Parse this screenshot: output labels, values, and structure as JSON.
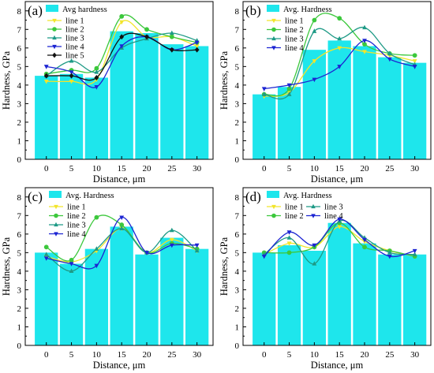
{
  "colors": {
    "bar": "#1ee6ec",
    "line_1": "#f2e52a",
    "line_2": "#3cc83c",
    "line_3": "#1e9a86",
    "line_4": "#1c24d2",
    "line_5": "#111111"
  },
  "chart_data": [
    {
      "type": "bar",
      "panel_label": "(a)",
      "xlabel": "Distance, μm",
      "ylabel": "Hardness, GPa",
      "x": [
        0,
        5,
        10,
        15,
        20,
        25,
        30
      ],
      "x_ticks": [
        "0",
        "5",
        "10",
        "15",
        "20",
        "25",
        "30"
      ],
      "y_ticks": [
        "0",
        "1",
        "2",
        "3",
        "4",
        "5",
        "6",
        "7",
        "8"
      ],
      "ylim": [
        0,
        8.5
      ],
      "legend_position": "top-left",
      "bar_series": {
        "name": "Avg hardness",
        "values": [
          4.5,
          4.6,
          4.4,
          6.9,
          6.8,
          6.2,
          6.1
        ]
      },
      "series": [
        {
          "name": "line 1",
          "color_key": "line_1",
          "marker": "triangle-down",
          "values": [
            4.2,
            4.2,
            4.3,
            7.4,
            6.6,
            6.6,
            6.1
          ]
        },
        {
          "name": "line 2",
          "color_key": "line_2",
          "marker": "circle",
          "values": [
            4.6,
            4.8,
            4.9,
            7.7,
            7.0,
            6.6,
            6.3
          ]
        },
        {
          "name": "line 3",
          "color_key": "line_3",
          "marker": "triangle-up",
          "values": [
            4.5,
            5.3,
            4.7,
            6.0,
            6.5,
            6.8,
            6.4
          ]
        },
        {
          "name": "line 4",
          "color_key": "line_4",
          "marker": "triangle-down",
          "values": [
            5.0,
            4.7,
            3.9,
            6.1,
            6.6,
            5.9,
            6.3
          ]
        },
        {
          "name": "line 5",
          "color_key": "line_5",
          "marker": "diamond",
          "values": [
            4.5,
            4.5,
            4.4,
            6.6,
            6.6,
            5.9,
            5.9
          ]
        }
      ]
    },
    {
      "type": "bar",
      "panel_label": "(b)",
      "xlabel": "Distance, μm",
      "ylabel": "Hardness, GPa",
      "x": [
        0,
        5,
        10,
        15,
        20,
        25,
        30
      ],
      "x_ticks": [
        "0",
        "5",
        "10",
        "15",
        "20",
        "25",
        "30"
      ],
      "y_ticks": [
        "0",
        "1",
        "2",
        "3",
        "4",
        "5",
        "6",
        "7",
        "8"
      ],
      "ylim": [
        0,
        8.5
      ],
      "legend_position": "top-left",
      "bar_series": {
        "name": "Avg. Hardness",
        "values": [
          3.5,
          3.9,
          5.9,
          6.4,
          6.1,
          5.5,
          5.2
        ]
      },
      "series": [
        {
          "name": "line 1",
          "color_key": "line_1",
          "marker": "triangle-down",
          "values": [
            3.4,
            3.6,
            5.3,
            6.0,
            5.8,
            5.6,
            5.3
          ]
        },
        {
          "name": "line 2",
          "color_key": "line_2",
          "marker": "circle",
          "values": [
            3.5,
            3.8,
            7.5,
            7.6,
            6.2,
            5.7,
            5.6
          ]
        },
        {
          "name": "line 3",
          "color_key": "line_3",
          "marker": "triangle-up",
          "values": [
            3.5,
            3.5,
            6.9,
            6.5,
            7.1,
            5.7,
            5.1
          ]
        },
        {
          "name": "line 4",
          "color_key": "line_4",
          "marker": "triangle-down",
          "values": [
            3.8,
            4.0,
            4.3,
            5.0,
            6.4,
            5.4,
            5.0
          ]
        }
      ]
    },
    {
      "type": "bar",
      "panel_label": "(c)",
      "xlabel": "Distance, μm",
      "ylabel": "Hardness, GPa",
      "x": [
        0,
        5,
        10,
        15,
        20,
        25,
        30
      ],
      "x_ticks": [
        "0",
        "5",
        "10",
        "15",
        "20",
        "25",
        "30"
      ],
      "y_ticks": [
        "0",
        "1",
        "2",
        "3",
        "4",
        "5",
        "6",
        "7",
        "8"
      ],
      "ylim": [
        0,
        8.5
      ],
      "legend_position": "top-left",
      "bar_series": {
        "name": "Avg. Hardness",
        "values": [
          5.0,
          4.4,
          5.2,
          6.4,
          4.9,
          5.8,
          5.2
        ]
      },
      "series": [
        {
          "name": "line 1",
          "color_key": "line_1",
          "marker": "triangle-down",
          "values": [
            4.8,
            4.5,
            5.1,
            6.3,
            5.0,
            5.7,
            5.1
          ]
        },
        {
          "name": "line 2",
          "color_key": "line_2",
          "marker": "circle",
          "values": [
            5.3,
            4.6,
            6.9,
            6.5,
            5.0,
            5.5,
            5.2
          ]
        },
        {
          "name": "line 3",
          "color_key": "line_3",
          "marker": "triangle-up",
          "values": [
            4.9,
            4.0,
            5.2,
            6.3,
            5.0,
            6.2,
            5.1
          ]
        },
        {
          "name": "line 4",
          "color_key": "line_4",
          "marker": "triangle-down",
          "values": [
            4.7,
            4.4,
            4.3,
            6.9,
            5.0,
            5.4,
            5.4
          ]
        }
      ]
    },
    {
      "type": "bar",
      "panel_label": "(d)",
      "xlabel": "Distance, μm",
      "ylabel": "Hardness, GPa",
      "x": [
        0,
        5,
        10,
        15,
        20,
        25,
        30
      ],
      "x_ticks": [
        "0",
        "5",
        "10",
        "15",
        "20",
        "25",
        "30"
      ],
      "y_ticks": [
        "0",
        "1",
        "2",
        "3",
        "4",
        "5",
        "6",
        "7",
        "8"
      ],
      "ylim": [
        0,
        8.5
      ],
      "legend_position": "top-left",
      "bar_series": {
        "name": "Avg. Hardness",
        "values": [
          5.0,
          5.4,
          5.1,
          6.6,
          5.5,
          4.9,
          4.9
        ]
      },
      "series": [
        {
          "name": "line 1",
          "color_key": "line_1",
          "marker": "triangle-down",
          "values": [
            4.9,
            5.5,
            5.3,
            6.4,
            5.6,
            5.1,
            4.8
          ]
        },
        {
          "name": "line 2",
          "color_key": "line_2",
          "marker": "circle",
          "values": [
            5.0,
            5.0,
            5.3,
            6.6,
            5.3,
            5.1,
            4.8
          ]
        },
        {
          "name": "line 3",
          "color_key": "line_3",
          "marker": "triangle-up",
          "values": [
            4.9,
            5.8,
            4.4,
            6.7,
            5.8,
            5.0,
            4.9
          ]
        },
        {
          "name": "line 4",
          "color_key": "line_4",
          "marker": "triangle-down",
          "values": [
            4.8,
            6.1,
            5.4,
            6.8,
            5.7,
            4.8,
            5.1
          ]
        }
      ]
    }
  ]
}
